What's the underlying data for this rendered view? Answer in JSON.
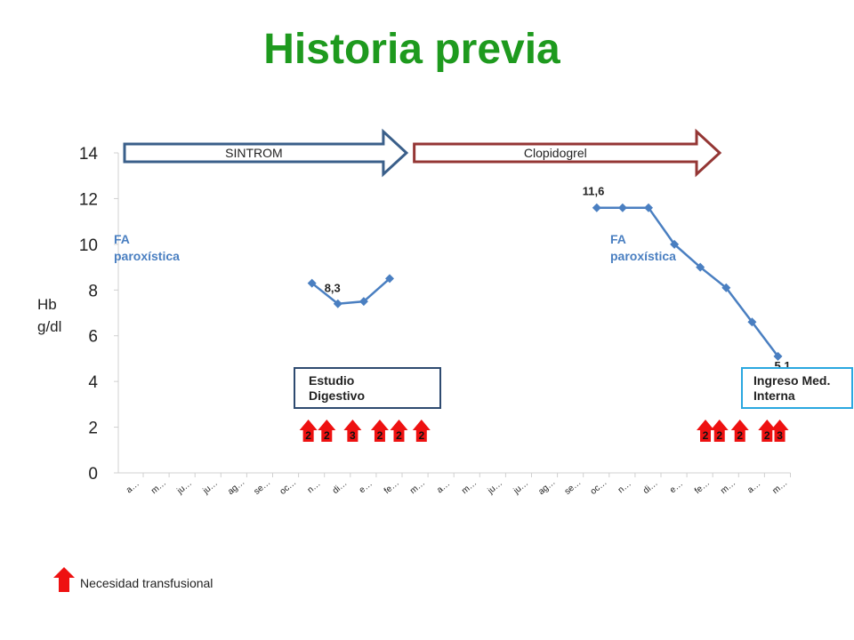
{
  "title": "Historia previa",
  "colors": {
    "title": "#1e9a1e",
    "series": "#4a7fc1",
    "sintrom_arrow": "#3a5f8a",
    "clopidogrel_arrow": "#943634",
    "transfusion_arrow": "#ee1111",
    "estudio_box_border": "#2e4a70",
    "ingreso_box_border": "#2aa7e0"
  },
  "chart_data": {
    "type": "line",
    "title": "Historia previa",
    "ylabel": "Hb\ng/dl",
    "ylim": [
      0,
      14
    ],
    "yticks": [
      0,
      2,
      4,
      6,
      8,
      10,
      12,
      14
    ],
    "grid": false,
    "categories": [
      "a…",
      "m…",
      "ju…",
      "ju…",
      "ag…",
      "se…",
      "oc…",
      "n…",
      "di…",
      "e…",
      "fe…",
      "m…",
      "a…",
      "m…",
      "ju…",
      "ju…",
      "ag…",
      "se…",
      "oc…",
      "n…",
      "di…",
      "e…",
      "fe…",
      "m…",
      "a…",
      "m…"
    ],
    "series": [
      {
        "values": [
          null,
          null,
          null,
          null,
          null,
          null,
          null,
          8.3,
          7.4,
          7.5,
          8.5,
          null,
          null,
          null,
          null,
          null,
          null,
          null,
          11.6,
          11.6,
          11.6,
          10.0,
          9.0,
          8.1,
          6.6,
          5.1
        ]
      }
    ],
    "data_labels": [
      {
        "index": 7,
        "text": "8,3"
      },
      {
        "index": 18,
        "text": "11,6"
      },
      {
        "index": 25,
        "text": "5,1"
      }
    ],
    "transfusions": [
      {
        "pos": 6.86,
        "units": "2"
      },
      {
        "pos": 7.57,
        "units": "2"
      },
      {
        "pos": 8.57,
        "units": "3"
      },
      {
        "pos": 9.62,
        "units": "2"
      },
      {
        "pos": 10.36,
        "units": "2"
      },
      {
        "pos": 11.23,
        "units": "2"
      },
      {
        "pos": 22.2,
        "units": "2"
      },
      {
        "pos": 22.74,
        "units": "2"
      },
      {
        "pos": 23.53,
        "units": "2"
      },
      {
        "pos": 24.58,
        "units": "2"
      },
      {
        "pos": 25.07,
        "units": "3"
      }
    ],
    "therapy_arrows": [
      {
        "label": "SINTROM",
        "from": 0.0,
        "to": 10.65
      },
      {
        "label": "Clopidogrel",
        "from": 10.95,
        "to": 22.75
      }
    ]
  },
  "annotations": {
    "fa_left": [
      "FA",
      "paroxística"
    ],
    "fa_right": [
      "FA",
      "paroxística"
    ],
    "estudio": [
      "Estudio",
      "Digestivo"
    ],
    "ingreso": [
      "Ingreso Med.",
      "Interna"
    ]
  },
  "axis_label": [
    "Hb",
    "g/dl"
  ],
  "legend": {
    "text": "Necesidad transfusional"
  }
}
